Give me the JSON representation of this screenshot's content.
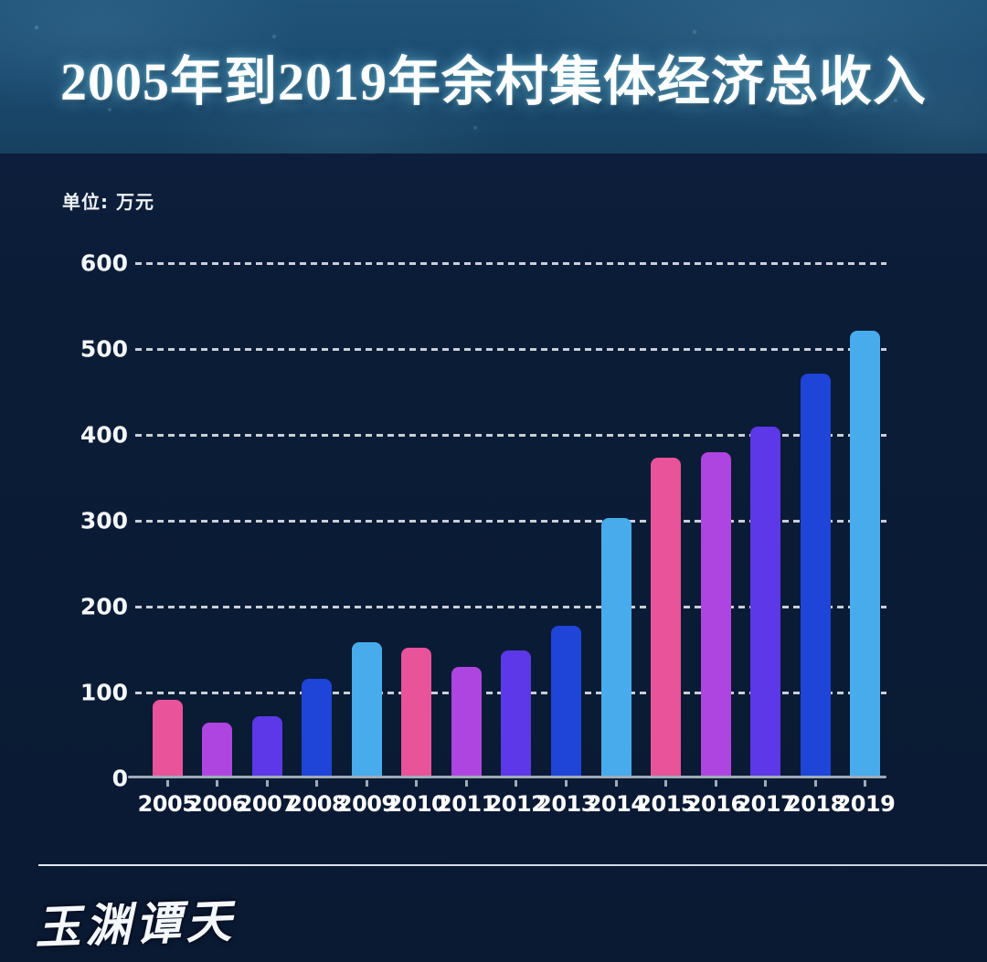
{
  "header": {
    "title": "2005年到2019年余村集体经济总收入"
  },
  "unit_label": "单位: 万元",
  "watermark": "玉渊谭天",
  "chart_data": {
    "type": "bar",
    "title": "2005年到2019年余村集体经济总收入",
    "unit": "万元",
    "ylabel": "单位: 万元",
    "categories": [
      "2005",
      "2006",
      "2007",
      "2008",
      "2009",
      "2010",
      "2011",
      "2012",
      "2013",
      "2014",
      "2015",
      "2016",
      "2017",
      "2018",
      "2019"
    ],
    "values": [
      91,
      65,
      72,
      116,
      158,
      152,
      130,
      149,
      178,
      303,
      373,
      380,
      410,
      471,
      521
    ],
    "ylim": [
      0,
      600
    ],
    "yticks": [
      0,
      100,
      200,
      300,
      400,
      500,
      600
    ],
    "grid": "horizontal-dashed",
    "legend": "none",
    "bar_color_cycle": [
      "#e8539a",
      "#ae45e0",
      "#5c38e8",
      "#1e44d8",
      "#48acec"
    ]
  },
  "colors": {
    "page_bg": "#0b1c37",
    "header_bg": "#1b4a6f",
    "grid_line": "#d8dfe6",
    "axis_line": "#9fabb8",
    "text": "#ffffff"
  }
}
